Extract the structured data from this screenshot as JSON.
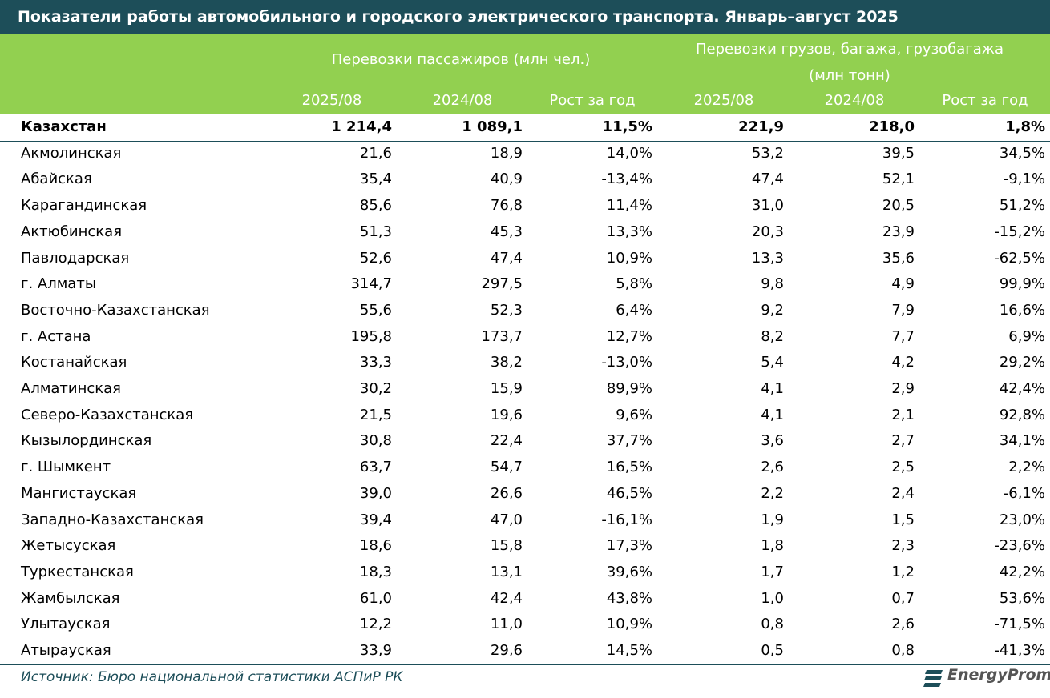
{
  "header": {
    "title": "Показатели работы автомобильного и городского электрического транспорта. Январь–август 2025"
  },
  "table": {
    "group_headers": [
      "Перевозки пассажиров (млн чел.)",
      [
        "Перевозки грузов, багажа, грузобагажа",
        "(млн тонн)"
      ]
    ],
    "columns": [
      "2025/08",
      "2024/08",
      "Рост за год",
      "2025/08",
      "2024/08",
      "Рост за год"
    ],
    "rows": [
      [
        "Казахстан",
        "1 214,4",
        "1 089,1",
        "11,5%",
        "221,9",
        "218,0",
        "1,8%"
      ],
      [
        "Акмолинская",
        "21,6",
        "18,9",
        "14,0%",
        "53,2",
        "39,5",
        "34,5%"
      ],
      [
        "Абайская",
        "35,4",
        "40,9",
        "-13,4%",
        "47,4",
        "52,1",
        "-9,1%"
      ],
      [
        "Карагандинская",
        "85,6",
        "76,8",
        "11,4%",
        "31,0",
        "20,5",
        "51,2%"
      ],
      [
        "Актюбинская",
        "51,3",
        "45,3",
        "13,3%",
        "20,3",
        "23,9",
        "-15,2%"
      ],
      [
        "Павлодарская",
        "52,6",
        "47,4",
        "10,9%",
        "13,3",
        "35,6",
        "-62,5%"
      ],
      [
        "г. Алматы",
        "314,7",
        "297,5",
        "5,8%",
        "9,8",
        "4,9",
        "99,9%"
      ],
      [
        "Восточно-Казахстанская",
        "55,6",
        "52,3",
        "6,4%",
        "9,2",
        "7,9",
        "16,6%"
      ],
      [
        "г. Астана",
        "195,8",
        "173,7",
        "12,7%",
        "8,2",
        "7,7",
        "6,9%"
      ],
      [
        "Костанайская",
        "33,3",
        "38,2",
        "-13,0%",
        "5,4",
        "4,2",
        "29,2%"
      ],
      [
        "Алматинская",
        "30,2",
        "15,9",
        "89,9%",
        "4,1",
        "2,9",
        "42,4%"
      ],
      [
        "Северо-Казахстанская",
        "21,5",
        "19,6",
        "9,6%",
        "4,1",
        "2,1",
        "92,8%"
      ],
      [
        "Кызылординская",
        "30,8",
        "22,4",
        "37,7%",
        "3,6",
        "2,7",
        "34,1%"
      ],
      [
        "г. Шымкент",
        "63,7",
        "54,7",
        "16,5%",
        "2,6",
        "2,5",
        "2,2%"
      ],
      [
        "Мангистауская",
        "39,0",
        "26,6",
        "46,5%",
        "2,2",
        "2,4",
        "-6,1%"
      ],
      [
        "Западно-Казахстанская",
        "39,4",
        "47,0",
        "-16,1%",
        "1,9",
        "1,5",
        "23,0%"
      ],
      [
        "Жетысуская",
        "18,6",
        "15,8",
        "17,3%",
        "1,8",
        "2,3",
        "-23,6%"
      ],
      [
        "Туркестанская",
        "18,3",
        "13,1",
        "39,6%",
        "1,7",
        "1,2",
        "42,2%"
      ],
      [
        "Жамбылская",
        "61,0",
        "42,4",
        "43,8%",
        "1,0",
        "0,7",
        "53,6%"
      ],
      [
        "Улытауская",
        "12,2",
        "11,0",
        "10,9%",
        "0,8",
        "2,6",
        "-71,5%"
      ],
      [
        "Атырауская",
        "33,9",
        "29,6",
        "14,5%",
        "0,5",
        "0,8",
        "-41,3%"
      ]
    ]
  },
  "footer": {
    "source": "Источник: Бюро национальной статистики АСПиР РК",
    "logo": "EnergyProm"
  }
}
